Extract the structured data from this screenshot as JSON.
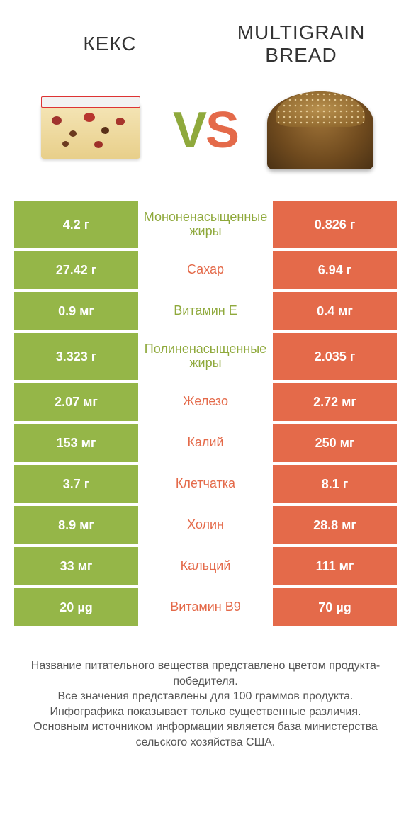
{
  "header": {
    "left_title": "КЕКС",
    "right_title": "Multigrain bread",
    "vs_v": "V",
    "vs_s": "S"
  },
  "colors": {
    "green": "#95b648",
    "orange": "#e46a4a",
    "green_text": "#8fa93c",
    "orange_text": "#e46a4a",
    "background": "#ffffff"
  },
  "comparison": {
    "type": "table",
    "columns": [
      "left_value",
      "nutrient",
      "right_value"
    ],
    "left_color": "#95b648",
    "right_color": "#e46a4a",
    "rows": [
      {
        "left": "4.2 г",
        "label": "Мононенасыщенные жиры",
        "right": "0.826 г",
        "winner": "left",
        "tall": true
      },
      {
        "left": "27.42 г",
        "label": "Сахар",
        "right": "6.94 г",
        "winner": "right"
      },
      {
        "left": "0.9 мг",
        "label": "Витамин E",
        "right": "0.4 мг",
        "winner": "left"
      },
      {
        "left": "3.323 г",
        "label": "Полиненасыщенные жиры",
        "right": "2.035 г",
        "winner": "left",
        "tall": true
      },
      {
        "left": "2.07 мг",
        "label": "Железо",
        "right": "2.72 мг",
        "winner": "right"
      },
      {
        "left": "153 мг",
        "label": "Калий",
        "right": "250 мг",
        "winner": "right"
      },
      {
        "left": "3.7 г",
        "label": "Клетчатка",
        "right": "8.1 г",
        "winner": "right"
      },
      {
        "left": "8.9 мг",
        "label": "Холин",
        "right": "28.8 мг",
        "winner": "right"
      },
      {
        "left": "33 мг",
        "label": "Кальций",
        "right": "111 мг",
        "winner": "right"
      },
      {
        "left": "20 µg",
        "label": "Витамин B9",
        "right": "70 µg",
        "winner": "right"
      }
    ]
  },
  "footnote": {
    "line1": "Название питательного вещества представлено цветом продукта-победителя.",
    "line2": "Все значения представлены для 100 граммов продукта.",
    "line3": "Инфографика показывает только существенные различия.",
    "line4": "Основным источником информации является база министерства сельского хозяйства США."
  }
}
